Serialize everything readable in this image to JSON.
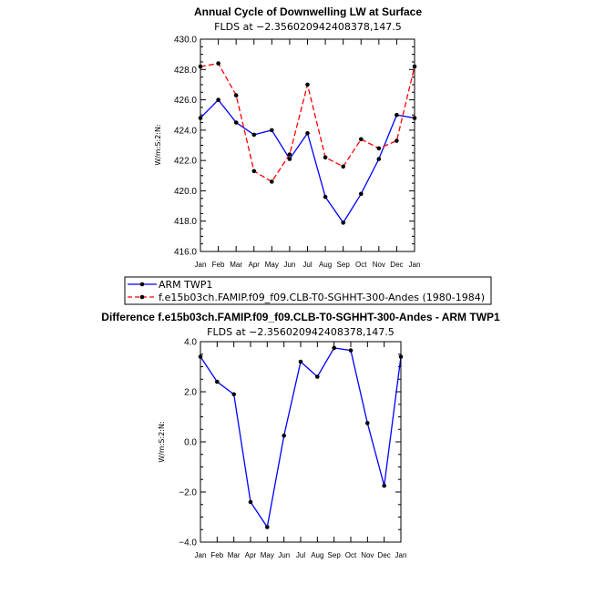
{
  "colors": {
    "arm": "#0000ff",
    "model": "#ff0000",
    "diff": "#0000ff",
    "marker": "#000000"
  },
  "chart_data": [
    {
      "type": "line",
      "title": "Annual Cycle of Downwelling LW at Surface",
      "subtitle": "FLDS at −2.356020942408378,147.5",
      "xlabel": "",
      "ylabel": "W/m:S:2:N:",
      "categories": [
        "Jan",
        "Feb",
        "Mar",
        "Apr",
        "May",
        "Jun",
        "Jul",
        "Aug",
        "Sep",
        "Oct",
        "Nov",
        "Dec",
        "Jan"
      ],
      "ylim": [
        416.0,
        430.0
      ],
      "yticks": [
        "416.0",
        "418.0",
        "420.0",
        "422.0",
        "424.0",
        "426.0",
        "428.0",
        "430.0"
      ],
      "grid": false,
      "legend": "bottom-left",
      "series": [
        {
          "name": "ARM TWP1",
          "color": "#0000ff",
          "dash": "solid",
          "values": [
            424.8,
            426.0,
            424.5,
            423.7,
            424.0,
            422.1,
            423.8,
            419.6,
            417.9,
            419.8,
            422.1,
            425.0,
            424.8
          ]
        },
        {
          "name": "f.e15b03ch.FAMIP.f09_f09.CLB-T0-SGHHT-300-Andes (1980-1984)",
          "color": "#ff0000",
          "dash": "dashed",
          "values": [
            428.2,
            428.4,
            426.3,
            421.3,
            420.6,
            422.4,
            427.0,
            422.2,
            421.6,
            423.4,
            422.8,
            423.3,
            428.2
          ]
        }
      ]
    },
    {
      "type": "line",
      "title": "Difference f.e15b03ch.FAMIP.f09_f09.CLB-T0-SGHHT-300-Andes - ARM TWP1",
      "subtitle": "FLDS at −2.356020942408378,147.5",
      "xlabel": "",
      "ylabel": "W/m:S:2:N:",
      "categories": [
        "Jan",
        "Feb",
        "Mar",
        "Apr",
        "May",
        "Jun",
        "Jul",
        "Aug",
        "Sep",
        "Oct",
        "Nov",
        "Dec",
        "Jan"
      ],
      "ylim": [
        -4.0,
        4.0
      ],
      "yticks": [
        "−4.0",
        "−2.0",
        "0.0",
        "2.0",
        "4.0"
      ],
      "grid": false,
      "series": [
        {
          "name": "",
          "color": "#0000ff",
          "dash": "solid",
          "values": [
            3.4,
            2.4,
            1.9,
            -2.4,
            -3.4,
            0.25,
            3.2,
            2.6,
            3.75,
            3.65,
            0.75,
            -1.75,
            3.4
          ]
        }
      ]
    }
  ]
}
